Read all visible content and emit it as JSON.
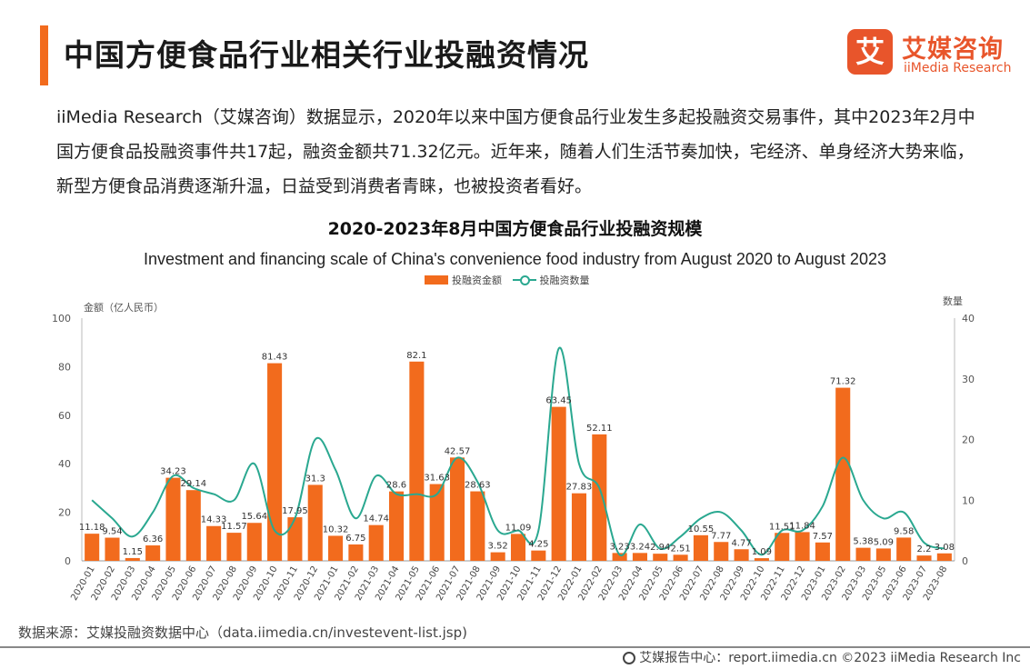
{
  "page": {
    "title": "中国方便食品行业相关行业投融资情况",
    "logo_cn": "艾媒咨询",
    "logo_en": "iiMedia Research",
    "logo_mark": "艾",
    "intro": "iiMedia Research（艾媒咨询）数据显示，2020年以来中国方便食品行业发生多起投融资交易事件，其中2023年2月中国方便食品投融资事件共17起，融资金额共71.32亿元。近年来，随着人们生活节奏加快，宅经济、单身经济大势来临，新型方便食品消费逐渐升温，日益受到消费者青睐，也被投资者看好。",
    "source": "数据来源：艾媒投融资数据中心（data.iimedia.cn/investevent-list.jsp)",
    "footer": "艾媒报告中心：report.iimedia.cn  ©2023  iiMedia Research  Inc"
  },
  "chart_data": {
    "type": "bar",
    "title": "2020-2023年8月中国方便食品行业投融资规模",
    "subtitle": "Investment and financing scale of China's convenience food industry from August 2020 to August 2023",
    "ylabel_left": "金额（亿人民币）",
    "ylabel_right": "数量",
    "ylim_left": [
      0,
      100
    ],
    "ylim_right": [
      0,
      40
    ],
    "yticks_left": [
      "0",
      "20",
      "40",
      "60",
      "80",
      "100"
    ],
    "yticks_right": [
      "0",
      "10",
      "20",
      "30",
      "40"
    ],
    "legend_position": "top-center",
    "grid": false,
    "categories": [
      "2020-01",
      "2020-02",
      "2020-03",
      "2020-04",
      "2020-05",
      "2020-06",
      "2020-07",
      "2020-08",
      "2020-09",
      "2020-10",
      "2020-11",
      "2020-12",
      "2021-01",
      "2021-02",
      "2021-03",
      "2021-04",
      "2021-05",
      "2021-06",
      "2021-07",
      "2021-08",
      "2021-09",
      "2021-10",
      "2021-11",
      "2021-12",
      "2022-01",
      "2022-02",
      "2022-03",
      "2022-04",
      "2022-05",
      "2022-06",
      "2022-07",
      "2022-08",
      "2022-09",
      "2022-10",
      "2022-11",
      "2022-12",
      "2023-01",
      "2023-02",
      "2023-03",
      "2023-05",
      "2023-06",
      "2023-07",
      "2023-08"
    ],
    "series": [
      {
        "name": "投融资金额",
        "type": "bar",
        "axis": "left",
        "color": "#f26b1d",
        "values": [
          11.18,
          9.54,
          1.15,
          6.36,
          34.23,
          29.14,
          14.33,
          11.57,
          15.64,
          81.43,
          17.95,
          31.3,
          10.32,
          6.75,
          14.74,
          28.6,
          82.1,
          31.63,
          42.57,
          28.63,
          3.52,
          11.09,
          4.25,
          63.45,
          27.83,
          52.11,
          3.23,
          3.24,
          2.94,
          2.51,
          10.55,
          7.77,
          4.77,
          1.09,
          11.51,
          11.84,
          7.57,
          71.32,
          5.38,
          5.09,
          9.58,
          2.2,
          3.08
        ],
        "labels": [
          "11.18",
          "9.54",
          "1.15",
          "6.36",
          "34.23",
          "29.14",
          "14.33",
          "11.57",
          "15.64",
          "81.43",
          "17.95",
          "31.3",
          "10.32",
          "6.75",
          "14.74",
          "28.6",
          "82.1",
          "31.63",
          "42.57",
          "28.63",
          "3.52",
          "11.09",
          "4.25",
          "63.45",
          "27.83",
          "52.11",
          "3.23",
          "3.24",
          "2.94",
          "2.51",
          "10.55",
          "7.77",
          "4.77",
          "1.09",
          "11.51",
          "11.84",
          "7.57",
          "71.32",
          "5.38",
          "5.09",
          "9.58",
          "2.2",
          "3.08"
        ]
      },
      {
        "name": "投融资数量",
        "type": "line",
        "axis": "right",
        "color": "#2aa890",
        "values": [
          10,
          7,
          4,
          8,
          14,
          12,
          11,
          10,
          16,
          5,
          7,
          20,
          15,
          7,
          14,
          11,
          11,
          11,
          17,
          13,
          5,
          5,
          5,
          35,
          16,
          12,
          1,
          6,
          2,
          4,
          7,
          8,
          5,
          1,
          5,
          5,
          9,
          17,
          10,
          7,
          8,
          3,
          2
        ]
      }
    ]
  }
}
